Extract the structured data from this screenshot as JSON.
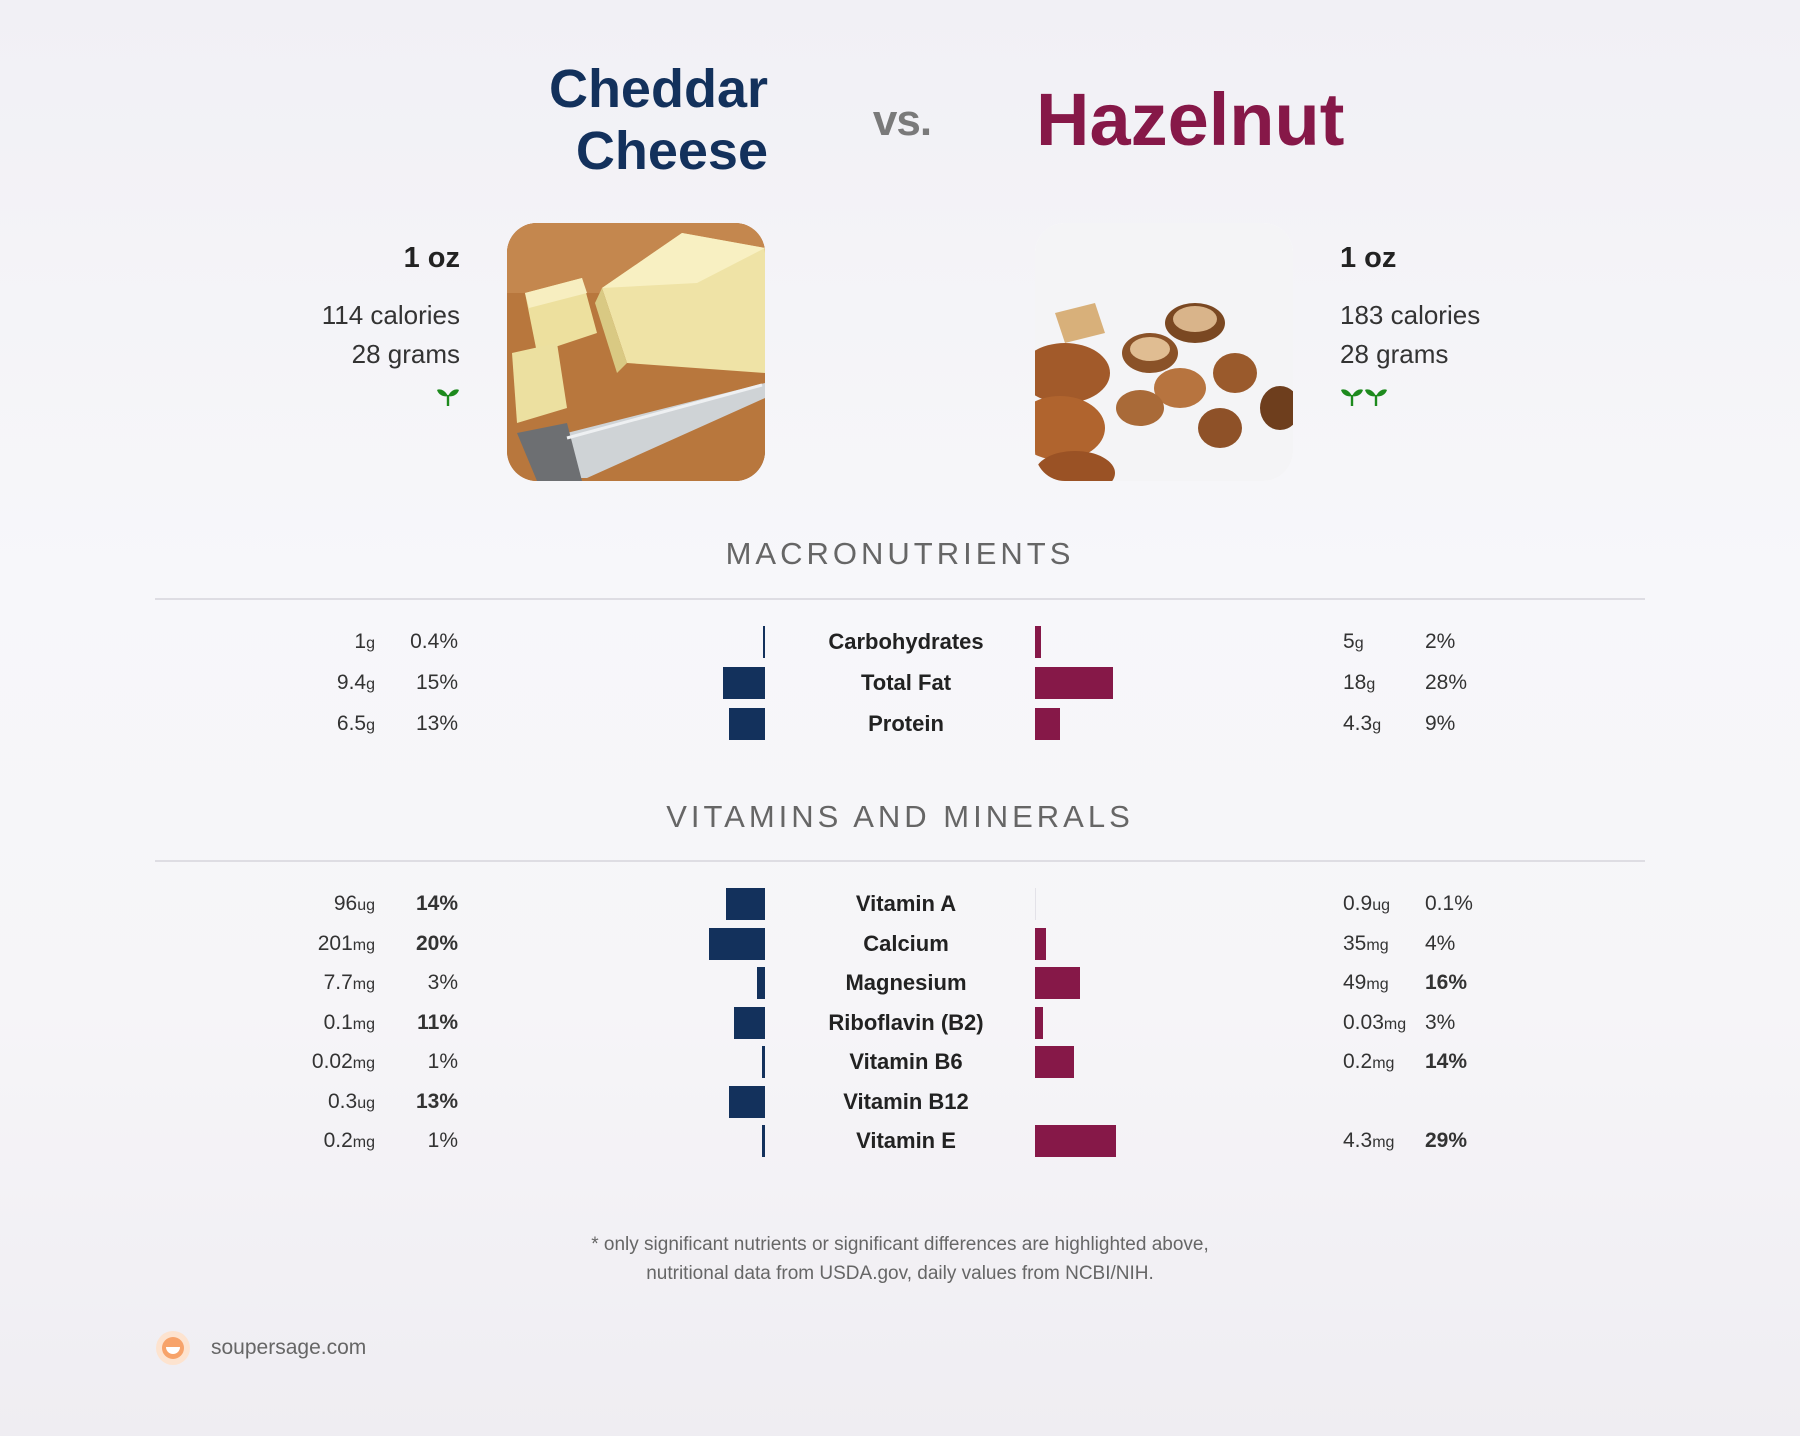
{
  "header": {
    "left_title_line1": "Cheddar",
    "left_title_line2": "Cheese",
    "vs": "vs.",
    "right_title": "Hazelnut"
  },
  "foods": {
    "left": {
      "serving": "1 oz",
      "calories": "114 calories",
      "grams": "28 grams",
      "sprouts": 1,
      "image_icon": "cheese-photo"
    },
    "right": {
      "serving": "1 oz",
      "calories": "183 calories",
      "grams": "28 grams",
      "sprouts": 2,
      "image_icon": "hazelnut-photo"
    }
  },
  "sections": {
    "macro_title": "MACRONUTRIENTS",
    "vitamin_title": "VITAMINS AND MINERALS"
  },
  "colors": {
    "left": "#13315c",
    "right": "#861848"
  },
  "chart_data": [
    {
      "type": "bar",
      "title": "MACRONUTRIENTS",
      "orientation": "diverging-horizontal",
      "categories": [
        "Carbohydrates",
        "Total Fat",
        "Protein"
      ],
      "series": [
        {
          "name": "Cheddar Cheese",
          "amounts": [
            "1",
            "9.4",
            "6.5"
          ],
          "units": [
            "g",
            "g",
            "g"
          ],
          "percent_labels": [
            "0.4%",
            "15%",
            "13%"
          ],
          "values": [
            0.4,
            15,
            13
          ],
          "bold": [
            false,
            false,
            false
          ]
        },
        {
          "name": "Hazelnut",
          "amounts": [
            "5",
            "18",
            "4.3"
          ],
          "units": [
            "g",
            "g",
            "g"
          ],
          "percent_labels": [
            "2%",
            "28%",
            "9%"
          ],
          "values": [
            2,
            28,
            9
          ],
          "bold": [
            false,
            false,
            false
          ]
        }
      ]
    },
    {
      "type": "bar",
      "title": "VITAMINS AND MINERALS",
      "orientation": "diverging-horizontal",
      "categories": [
        "Vitamin A",
        "Calcium",
        "Magnesium",
        "Riboflavin (B2)",
        "Vitamin B6",
        "Vitamin B12",
        "Vitamin E"
      ],
      "series": [
        {
          "name": "Cheddar Cheese",
          "amounts": [
            "96",
            "201",
            "7.7",
            "0.1",
            "0.02",
            "0.3",
            "0.2"
          ],
          "units": [
            "ug",
            "mg",
            "mg",
            "mg",
            "mg",
            "ug",
            "mg"
          ],
          "percent_labels": [
            "14%",
            "20%",
            "3%",
            "11%",
            "1%",
            "13%",
            "1%"
          ],
          "values": [
            14,
            20,
            3,
            11,
            1,
            13,
            1
          ],
          "bold": [
            true,
            true,
            false,
            true,
            false,
            true,
            false
          ]
        },
        {
          "name": "Hazelnut",
          "amounts": [
            "0.9",
            "35",
            "49",
            "0.03",
            "0.2",
            "",
            "4.3"
          ],
          "units": [
            "ug",
            "mg",
            "mg",
            "mg",
            "mg",
            "",
            "mg"
          ],
          "percent_labels": [
            "0.1%",
            "4%",
            "16%",
            "3%",
            "14%",
            "",
            "29%"
          ],
          "values": [
            0.1,
            4,
            16,
            3,
            14,
            null,
            29
          ],
          "bold": [
            false,
            false,
            true,
            false,
            true,
            false,
            true
          ]
        }
      ]
    }
  ],
  "footer": {
    "note_line1": "* only significant nutrients or significant differences are highlighted above,",
    "note_line2": "nutritional data from USDA.gov, daily values from NCBI/NIH.",
    "brand": "soupersage.com",
    "brand_icon": "soupersage-logo-icon"
  }
}
